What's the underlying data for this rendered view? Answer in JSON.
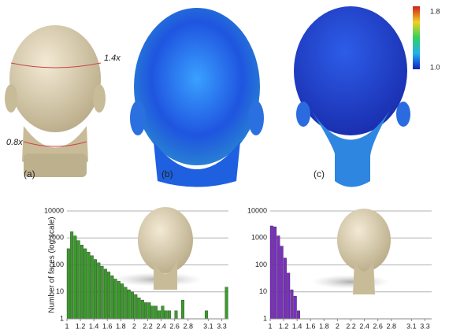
{
  "figure": {
    "panel_labels": [
      "(a)",
      "(b)",
      "(c)"
    ],
    "scale_labels": [
      "1.4x",
      "0.8x"
    ],
    "colorbar": {
      "max": "1.8",
      "min": "1.0"
    }
  },
  "chart_data": [
    {
      "type": "histogram",
      "y_label": "Number of faces (log scale)",
      "color": "#3a9a2a",
      "log_y": true,
      "grid": true,
      "bins": [
        1,
        1.05,
        1.1,
        1.15,
        1.2,
        1.25,
        1.3,
        1.35,
        1.4,
        1.45,
        1.5,
        1.55,
        1.6,
        1.65,
        1.7,
        1.75,
        1.8,
        1.85,
        1.9,
        1.95,
        2,
        2.05,
        2.1,
        2.15,
        2.2,
        2.25,
        2.3,
        2.35,
        2.4,
        2.45,
        2.5,
        2.55,
        2.6,
        2.65,
        2.7,
        2.75,
        2.8,
        2.85,
        2.9,
        2.95,
        3,
        3.05,
        3.1,
        3.15,
        3.2,
        3.25,
        3.3,
        3.35,
        3.4
      ],
      "values": [
        400,
        1700,
        1200,
        800,
        550,
        400,
        300,
        220,
        160,
        120,
        90,
        70,
        55,
        40,
        30,
        25,
        20,
        15,
        12,
        10,
        8,
        6,
        5,
        4,
        4,
        3,
        3,
        2,
        3,
        2,
        2,
        1,
        2,
        1,
        5,
        1,
        1,
        1,
        1,
        0,
        0,
        2,
        0,
        0,
        0,
        0,
        0,
        15
      ],
      "xlim": [
        1,
        3.4
      ],
      "xticks": [
        1,
        1.2,
        1.4,
        1.6,
        1.8,
        2,
        2.2,
        2.4,
        2.6,
        2.8,
        3.1,
        3.3
      ],
      "ylim": [
        1,
        10000
      ],
      "yticks": [
        1,
        10,
        100,
        1000,
        10000
      ]
    },
    {
      "type": "histogram",
      "color": "#7a2fc0",
      "log_y": true,
      "grid": true,
      "bins": [
        1,
        1.05,
        1.1,
        1.15,
        1.2,
        1.25,
        1.3,
        1.35,
        1.4,
        1.45
      ],
      "values": [
        2800,
        2600,
        1200,
        500,
        180,
        50,
        12,
        7,
        2
      ],
      "xlim": [
        1,
        3.4
      ],
      "xticks": [
        1,
        1.2,
        1.4,
        1.6,
        1.8,
        2,
        2.2,
        2.4,
        2.6,
        2.8,
        3.1,
        3.3
      ],
      "ylim": [
        1,
        10000
      ],
      "yticks": [
        1,
        10,
        100,
        1000,
        10000
      ]
    }
  ]
}
